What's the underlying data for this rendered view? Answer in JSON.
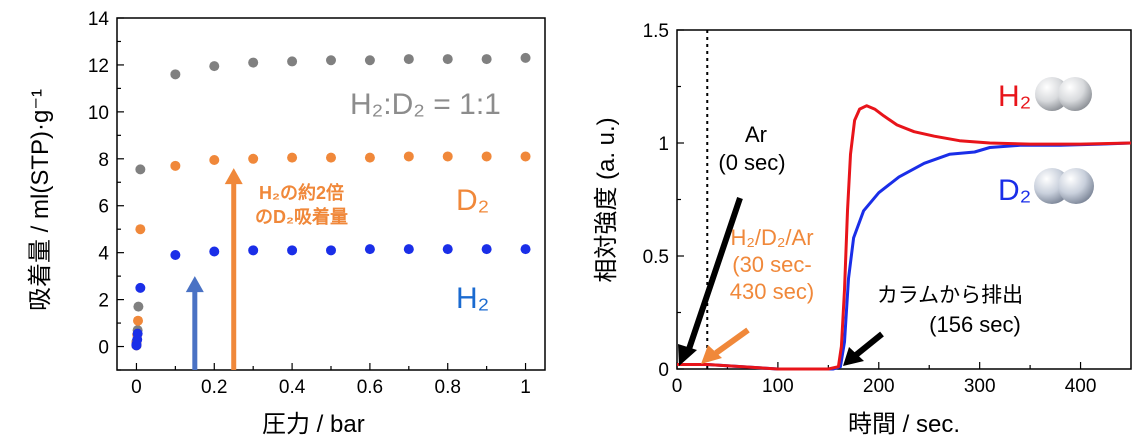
{
  "chart_data": [
    {
      "type": "scatter",
      "xlabel": "圧力 / bar",
      "ylabel": "吸着量 / ml(STP)·g⁻¹",
      "xlim": [
        -0.05,
        1.05
      ],
      "ylim": [
        -1,
        14
      ],
      "x_ticks": [
        "0",
        "0.2",
        "0.4",
        "0.6",
        "0.8",
        "1"
      ],
      "y_ticks": [
        "0",
        "2",
        "4",
        "6",
        "8",
        "10",
        "12",
        "14"
      ],
      "grid": false,
      "series": [
        {
          "name": "H₂:D₂ = 1:1",
          "color": "#808080",
          "points": [
            [
              0.0,
              0.05
            ],
            [
              0.0,
              0.2
            ],
            [
              0.003,
              0.7
            ],
            [
              0.005,
              1.7
            ],
            [
              0.01,
              7.55
            ],
            [
              0.1,
              11.6
            ],
            [
              0.2,
              11.95
            ],
            [
              0.3,
              12.1
            ],
            [
              0.4,
              12.15
            ],
            [
              0.5,
              12.2
            ],
            [
              0.6,
              12.2
            ],
            [
              0.7,
              12.25
            ],
            [
              0.8,
              12.25
            ],
            [
              0.9,
              12.25
            ],
            [
              1.0,
              12.3
            ]
          ]
        },
        {
          "name": "D₂",
          "color": "#f0883a",
          "points": [
            [
              0.0,
              0.05
            ],
            [
              0.0,
              0.15
            ],
            [
              0.002,
              0.5
            ],
            [
              0.004,
              1.1
            ],
            [
              0.01,
              5.0
            ],
            [
              0.1,
              7.7
            ],
            [
              0.2,
              7.95
            ],
            [
              0.3,
              8.0
            ],
            [
              0.4,
              8.05
            ],
            [
              0.5,
              8.05
            ],
            [
              0.6,
              8.05
            ],
            [
              0.7,
              8.1
            ],
            [
              0.8,
              8.1
            ],
            [
              0.9,
              8.1
            ],
            [
              1.0,
              8.1
            ]
          ]
        },
        {
          "name": "H₂",
          "color": "#1a2ee8",
          "points": [
            [
              0.0,
              0.05
            ],
            [
              0.0,
              0.1
            ],
            [
              0.002,
              0.3
            ],
            [
              0.003,
              0.55
            ],
            [
              0.01,
              2.5
            ],
            [
              0.1,
              3.9
            ],
            [
              0.2,
              4.05
            ],
            [
              0.3,
              4.1
            ],
            [
              0.4,
              4.1
            ],
            [
              0.5,
              4.1
            ],
            [
              0.6,
              4.15
            ],
            [
              0.7,
              4.15
            ],
            [
              0.8,
              4.15
            ],
            [
              0.9,
              4.15
            ],
            [
              1.0,
              4.15
            ]
          ]
        }
      ],
      "annotations": {
        "series_label_mix": "H₂:D₂ = 1:1",
        "series_label_d2": "D₂",
        "series_label_h2": "H₂",
        "note_line1": "H₂の約2倍",
        "note_line2": "のD₂吸着量",
        "arrow_blue": {
          "x": 0.15,
          "from_y": -1,
          "to_y": 3.0,
          "color": "#4a72c4"
        },
        "arrow_orange": {
          "x": 0.25,
          "from_y": -1,
          "to_y": 7.6,
          "color": "#f0883a"
        }
      }
    },
    {
      "type": "line",
      "xlabel": "時間 / sec.",
      "ylabel": "相対強度 (a. u.)",
      "xlim": [
        0,
        450
      ],
      "ylim": [
        0,
        1.5
      ],
      "x_ticks": [
        "0",
        "100",
        "200",
        "300",
        "400"
      ],
      "y_ticks": [
        "0",
        "0.5",
        "1",
        "1.5"
      ],
      "grid": false,
      "series": [
        {
          "name": "H₂",
          "color": "#e8141a",
          "points": [
            [
              0,
              0.02
            ],
            [
              30,
              0.02
            ],
            [
              100,
              0.0
            ],
            [
              150,
              0.0
            ],
            [
              160,
              0.01
            ],
            [
              163,
              0.1
            ],
            [
              166,
              0.35
            ],
            [
              169,
              0.7
            ],
            [
              172,
              0.95
            ],
            [
              176,
              1.1
            ],
            [
              181,
              1.15
            ],
            [
              188,
              1.165
            ],
            [
              196,
              1.15
            ],
            [
              205,
              1.12
            ],
            [
              218,
              1.08
            ],
            [
              235,
              1.05
            ],
            [
              255,
              1.03
            ],
            [
              280,
              1.01
            ],
            [
              310,
              1.0
            ],
            [
              350,
              0.995
            ],
            [
              400,
              0.995
            ],
            [
              450,
              1.0
            ]
          ]
        },
        {
          "name": "D₂",
          "color": "#1a2ee8",
          "points": [
            [
              0,
              0.02
            ],
            [
              30,
              0.02
            ],
            [
              100,
              0.0
            ],
            [
              155,
              0.0
            ],
            [
              162,
              0.01
            ],
            [
              166,
              0.12
            ],
            [
              170,
              0.4
            ],
            [
              175,
              0.58
            ],
            [
              185,
              0.7
            ],
            [
              200,
              0.78
            ],
            [
              220,
              0.85
            ],
            [
              245,
              0.91
            ],
            [
              270,
              0.95
            ],
            [
              295,
              0.96
            ],
            [
              310,
              0.98
            ],
            [
              340,
              0.99
            ],
            [
              380,
              0.99
            ],
            [
              420,
              0.995
            ],
            [
              450,
              1.0
            ]
          ]
        }
      ],
      "annotations": {
        "series_label_h2": "H₂",
        "series_label_d2": "D₂",
        "ar_label_1": "Ar",
        "ar_label_2": "(0 sec)",
        "mix_label_1": "H₂/D₂/Ar",
        "mix_label_2": "(30 sec-",
        "mix_label_3": "430 sec)",
        "exhaust_label_1": "カラムから排出",
        "exhaust_label_2": "(156 sec)",
        "dotted_line_x": 30
      }
    }
  ]
}
